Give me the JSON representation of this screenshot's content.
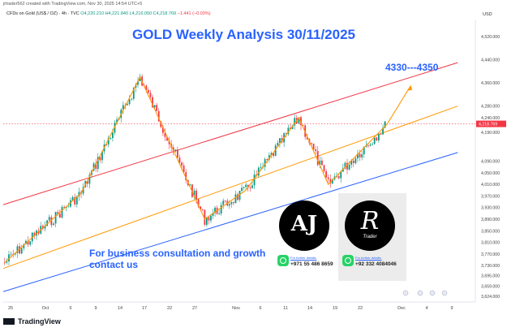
{
  "header": {
    "created": "jrtrader562 created with TradingView.com, Nov 30, 2025 14:54 UTC+5",
    "symbol": "CFDs on Gold (US$ / OZ) · 4h · TVC",
    "ohlc_open": "O4,220.210",
    "ohlc_high": "H4,221.840",
    "ohlc_low": "L4,216.050",
    "ohlc_close": "C4,218.769",
    "change": "−1.441 (−0.03%)"
  },
  "annotations": {
    "title": "GOLD Weekly Analysis 30/11/2025",
    "target": "4330---4350",
    "consult": "For business consultation and growth contact us"
  },
  "logos": {
    "left_mark": "AJ",
    "right_mark": "R",
    "right_sub": "Trader",
    "left_contact_label": "For further details:",
    "left_contact_number": "+971 55 486 8659",
    "right_contact_label": "For further details:",
    "right_contact_number": "+92 332 4084046"
  },
  "footer": {
    "brand": "TradingView"
  },
  "colors": {
    "up": "#089981",
    "down": "#f23645",
    "title": "#2962ff",
    "upper_channel": "#f23645",
    "mid_channel": "#ff9800",
    "lower_channel": "#2962ff",
    "path": "#ff9800",
    "price_tag": "#f23645"
  },
  "chart_data": {
    "type": "candlestick",
    "currency": "USD",
    "y_ticks": [
      4520,
      4440,
      4360,
      4280,
      4240,
      4190,
      4090,
      4050,
      4010,
      3970,
      3930,
      3890,
      3850,
      3810,
      3770,
      3730,
      3695,
      3659,
      3624
    ],
    "y_tick_labels": [
      "4,520.000",
      "4,440.000",
      "4,360.000",
      "4,280.000",
      "4,240.000",
      "4,190.000",
      "4,090.000",
      "4,050.000",
      "4,010.000",
      "3,970.000",
      "3,930.000",
      "3,890.000",
      "3,850.000",
      "3,810.000",
      "3,770.000",
      "3,730.000",
      "3,695.000",
      "3,659.000",
      "3,624.000"
    ],
    "x_tick_labels": [
      "25",
      "Oct",
      "6",
      "9",
      "14",
      "17",
      "22",
      "27",
      "Nov",
      "6",
      "11",
      "14",
      "19",
      "22",
      "Dec",
      "4",
      "9"
    ],
    "last_price": "4,218.769",
    "price_path": [
      {
        "date": "Sep 24",
        "price": 3740
      },
      {
        "date": "Oct 7",
        "price": 3980
      },
      {
        "date": "Oct 17",
        "price": 4380
      },
      {
        "date": "Oct 28",
        "price": 3890
      },
      {
        "date": "Nov 4",
        "price": 3990
      },
      {
        "date": "Nov 13",
        "price": 4240
      },
      {
        "date": "Nov 18",
        "price": 4010
      },
      {
        "date": "Nov 28",
        "price": 4218
      },
      {
        "date": "Dec 2",
        "price": 4350
      }
    ],
    "channels": [
      {
        "name": "upper",
        "from": {
          "date": "Sep 24",
          "price": 3940
        },
        "to": {
          "date": "Dec 10",
          "price": 4430
        }
      },
      {
        "name": "middle",
        "from": {
          "date": "Sep 24",
          "price": 3720
        },
        "to": {
          "date": "Dec 10",
          "price": 4280
        }
      },
      {
        "name": "lower",
        "from": {
          "date": "Sep 24",
          "price": 3640
        },
        "to": {
          "date": "Dec 10",
          "price": 4120
        }
      }
    ]
  }
}
